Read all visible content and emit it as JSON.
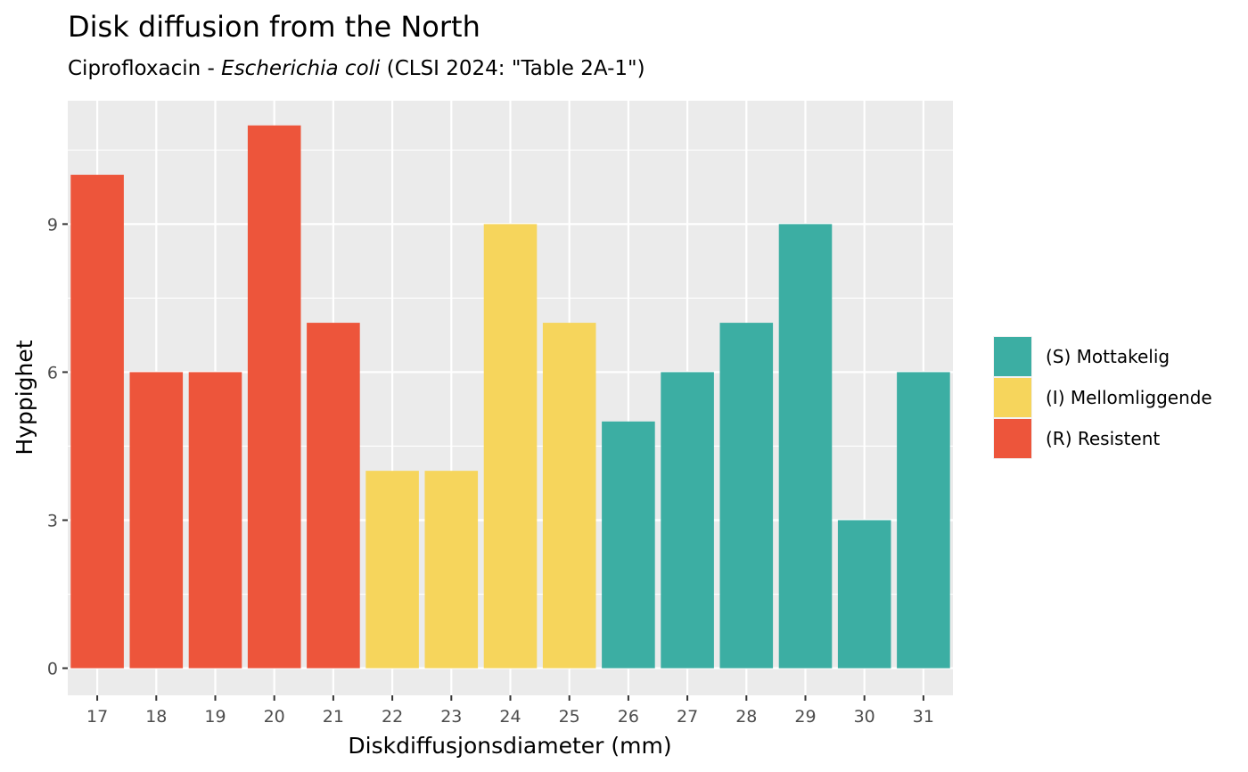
{
  "chart_data": {
    "type": "bar",
    "title": "Disk diffusion from the North",
    "subtitle": {
      "prefix": "Ciprofloxacin - ",
      "organism": "Escherichia coli",
      "suffix": " (CLSI 2024: \"Table 2A-1\")"
    },
    "xlabel": "Diskdiffusjonsdiameter (mm)",
    "ylabel": "Hyppighet",
    "categories": [
      "17",
      "18",
      "19",
      "20",
      "21",
      "22",
      "23",
      "24",
      "25",
      "26",
      "27",
      "28",
      "29",
      "30",
      "31"
    ],
    "values": [
      10,
      6,
      6,
      11,
      7,
      4,
      4,
      9,
      7,
      5,
      6,
      7,
      9,
      3,
      6
    ],
    "classes": [
      "R",
      "R",
      "R",
      "R",
      "R",
      "I",
      "I",
      "I",
      "I",
      "S",
      "S",
      "S",
      "S",
      "S",
      "S"
    ],
    "ylim": [
      -0.55,
      11.5
    ],
    "yticks": [
      0,
      3,
      6,
      9
    ],
    "grid": true,
    "legend_position": "right",
    "legend": [
      {
        "key": "S",
        "label": "(S) Mottakelig",
        "color": "#3CAEA3"
      },
      {
        "key": "I",
        "label": "(I) Mellomliggende",
        "color": "#F6D55C"
      },
      {
        "key": "R",
        "label": "(R) Resistent",
        "color": "#ED553B"
      }
    ],
    "panel_color": "#EBEBEB"
  }
}
